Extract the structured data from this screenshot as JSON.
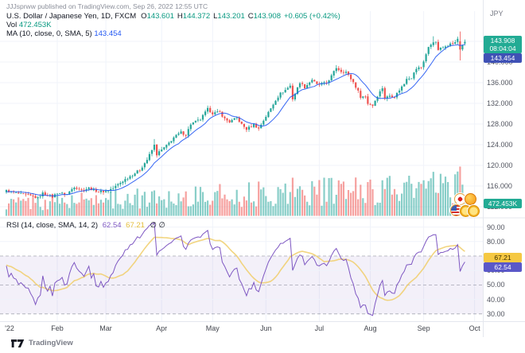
{
  "attribution": "JJJsprww published on TradingView.com, Sep 26, 2022 12:55 UTC",
  "main_pane": {
    "legend": {
      "symbol": "U.S. Dollar / Japanese Yen, 1D, FXCM",
      "ohlc": [
        {
          "label": "O",
          "value": "143.601"
        },
        {
          "label": "H",
          "value": "144.372"
        },
        {
          "label": "L",
          "value": "143.201"
        },
        {
          "label": "C",
          "value": "143.908"
        }
      ],
      "change": "+0.605 (+0.42%)",
      "vol_label": "Vol",
      "vol_value": "472.453K",
      "ma_label": "MA (10, close, 0, SMA, 5)",
      "ma_value": "143.454"
    },
    "price_scale": {
      "currency": "JPY",
      "last_price_badge": {
        "price": "143.908",
        "countdown": "08:04:04"
      },
      "ma_badge": {
        "value": "143.454"
      },
      "vol_badge": {
        "value": "472.453K"
      }
    }
  },
  "rsi_pane": {
    "legend": {
      "title": "RSI (14, close, SMA, 14, 2)",
      "rsi_value": "62.54",
      "ma_value": "67.21",
      "extra": "∅ ∅"
    },
    "badges": {
      "ma": {
        "value": "67.21"
      },
      "rsi": {
        "value": "62.54"
      }
    }
  },
  "emoji_stickers": [
    {
      "name": "japan-flag-emoji"
    },
    {
      "name": "dizzy-face-emoji"
    },
    {
      "name": "us-flag-emoji"
    },
    {
      "name": "coin-emoji"
    },
    {
      "name": "coin-emoji"
    }
  ],
  "footer": {
    "logo_text": "TradingView"
  },
  "colors": {
    "up": "#26a69a",
    "down": "#ef5350",
    "up_text": "#089981",
    "vol_up": "rgba(38,166,154,0.55)",
    "vol_down": "rgba(239,83,80,0.55)",
    "ma_line": "#2157f3",
    "rsi_line": "#7e57c2",
    "rsi_ma_line": "#f0ce6a",
    "band_fill": "rgba(126,87,194,0.09)",
    "grid": "#f0f3fa",
    "level_dash": "#8a8e9b",
    "badge_last": "#22ab94",
    "badge_ma": "#3f51b5",
    "badge_vol": "#22ab94",
    "badge_rsi": "#5a58c8",
    "badge_rsi_ma": "#f5c842",
    "badge_rsi_ma_text": "#3d2f00"
  },
  "chart_data": {
    "type": "candlestick",
    "title": "U.S. Dollar / Japanese Yen, 1D, FXCM",
    "subpanes": [
      "volume overlay",
      "RSI (14) with SMA(14) of RSI"
    ],
    "last_candle": {
      "open": 143.601,
      "high": 144.372,
      "low": 143.201,
      "close": 143.908,
      "change": "+0.605 (+0.42%)",
      "volume": "472.453K",
      "countdown": "08:04:04"
    },
    "ma10_last": 143.454,
    "rsi_last": 62.54,
    "rsi_ma_last": 67.21,
    "price_axis": {
      "currency": "JPY",
      "label_ticks": [
        140,
        136,
        132,
        128,
        124,
        120,
        116,
        112
      ],
      "grid_ticks": [
        144,
        140,
        136,
        132,
        128,
        124,
        120,
        116,
        112
      ]
    },
    "rsi_axis": {
      "label_ticks": [
        90,
        80,
        70,
        60,
        50,
        40,
        30
      ],
      "grid_ticks": [
        90,
        80,
        60,
        40
      ],
      "levels": {
        "upper": 70,
        "middle": 50,
        "lower": 30
      }
    },
    "months": [
      [
        "'22",
        0
      ],
      [
        "Feb",
        21
      ],
      [
        "Mar",
        41
      ],
      [
        "Apr",
        64
      ],
      [
        "May",
        85
      ],
      [
        "Jun",
        107
      ],
      [
        "Jul",
        129
      ],
      [
        "Aug",
        150
      ],
      [
        "Sep",
        172
      ],
      [
        "Oct",
        193
      ]
    ],
    "close_anchors": [
      [
        0,
        115.1
      ],
      [
        6,
        114.4
      ],
      [
        9,
        114.2
      ],
      [
        13,
        113.7
      ],
      [
        15,
        114.6
      ],
      [
        19,
        113.9
      ],
      [
        21,
        114.7
      ],
      [
        25,
        114.4
      ],
      [
        28,
        115.9
      ],
      [
        31,
        115.2
      ],
      [
        34,
        115.6
      ],
      [
        38,
        114.9
      ],
      [
        41,
        115.0
      ],
      [
        44,
        115.6
      ],
      [
        46,
        116.3
      ],
      [
        49,
        117.3
      ],
      [
        52,
        118.2
      ],
      [
        55,
        119.1
      ],
      [
        58,
        121.1
      ],
      [
        61,
        123.9
      ],
      [
        62,
        122.1
      ],
      [
        63,
        122.6
      ],
      [
        66,
        123.8
      ],
      [
        69,
        125.4
      ],
      [
        72,
        126.4
      ],
      [
        74,
        125.9
      ],
      [
        76,
        128.0
      ],
      [
        80,
        128.9
      ],
      [
        83,
        130.9
      ],
      [
        85,
        130.1
      ],
      [
        88,
        130.3
      ],
      [
        90,
        129.0
      ],
      [
        92,
        128.4
      ],
      [
        95,
        129.2
      ],
      [
        97,
        127.9
      ],
      [
        99,
        127.0
      ],
      [
        102,
        127.9
      ],
      [
        104,
        127.1
      ],
      [
        106,
        128.7
      ],
      [
        109,
        131.0
      ],
      [
        111,
        132.7
      ],
      [
        113,
        133.9
      ],
      [
        115,
        134.6
      ],
      [
        117,
        135.4
      ],
      [
        118,
        132.9
      ],
      [
        119,
        133.9
      ],
      [
        121,
        136.1
      ],
      [
        123,
        135.1
      ],
      [
        126,
        136.6
      ],
      [
        128,
        135.6
      ],
      [
        130,
        135.8
      ],
      [
        132,
        135.9
      ],
      [
        134,
        137.3
      ],
      [
        136,
        138.9
      ],
      [
        138,
        138.2
      ],
      [
        140,
        138.1
      ],
      [
        141,
        137.4
      ],
      [
        143,
        136.1
      ],
      [
        145,
        134.3
      ],
      [
        146,
        133.3
      ],
      [
        148,
        133.3
      ],
      [
        149,
        132.0
      ],
      [
        151,
        131.6
      ],
      [
        153,
        133.5
      ],
      [
        155,
        135.0
      ],
      [
        156,
        133.0
      ],
      [
        158,
        133.5
      ],
      [
        160,
        133.3
      ],
      [
        162,
        134.6
      ],
      [
        164,
        135.8
      ],
      [
        165,
        136.9
      ],
      [
        167,
        137.0
      ],
      [
        169,
        138.7
      ],
      [
        171,
        139.0
      ],
      [
        172,
        140.2
      ],
      [
        174,
        142.8
      ],
      [
        176,
        144.0
      ],
      [
        177,
        143.7
      ],
      [
        178,
        142.4
      ],
      [
        180,
        142.8
      ],
      [
        181,
        143.2
      ],
      [
        183,
        143.5
      ],
      [
        185,
        143.7
      ],
      [
        186,
        144.5
      ],
      [
        187,
        142.4
      ],
      [
        188,
        143.35
      ],
      [
        189,
        143.908
      ]
    ],
    "special_candles": {
      "61": {
        "h": 125.1
      },
      "136": {
        "h": 139.4
      },
      "176": {
        "h": 144.99
      },
      "187": {
        "o": 144.0,
        "h": 145.9,
        "l": 140.3,
        "c": 142.4
      },
      "189": {
        "o": 143.601,
        "h": 144.372,
        "l": 143.201,
        "c": 143.908
      }
    },
    "volume_spikes": [
      [
        37,
        26
      ],
      [
        61,
        32
      ],
      [
        117,
        30
      ],
      [
        118,
        48
      ],
      [
        187,
        62
      ],
      [
        189,
        19
      ]
    ]
  }
}
